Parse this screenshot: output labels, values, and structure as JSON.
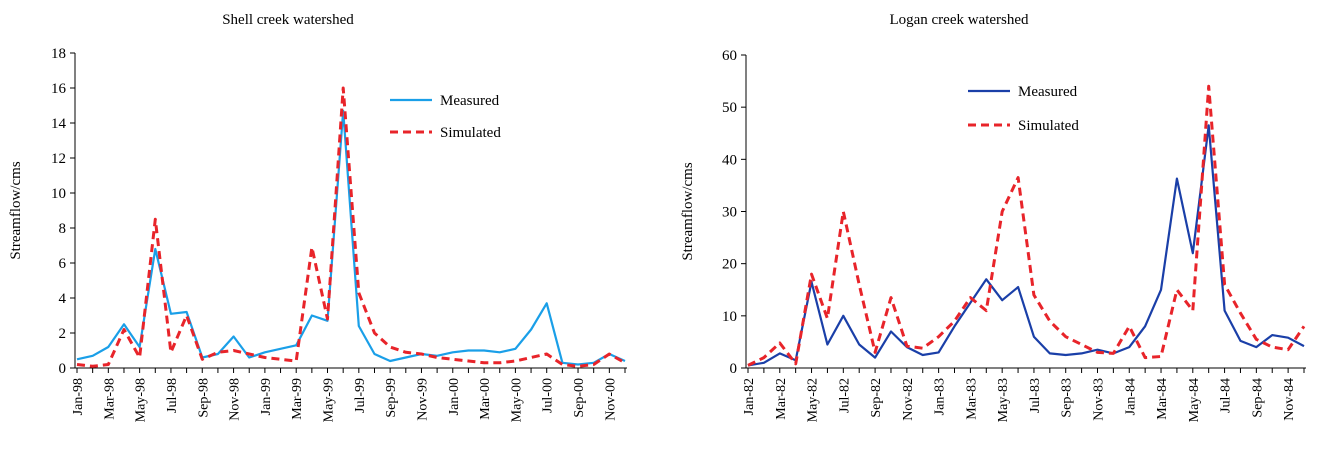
{
  "chart_data": [
    {
      "type": "line",
      "title": "Shell creek watershed",
      "xlabel": "",
      "ylabel": "Streamflow/cms",
      "ylim": [
        0,
        18
      ],
      "yticks": [
        0,
        2,
        4,
        6,
        8,
        10,
        12,
        14,
        16,
        18
      ],
      "grid": false,
      "legend_position": "top-right",
      "x": [
        "Jan-98",
        "Feb-98",
        "Mar-98",
        "Apr-98",
        "May-98",
        "Jun-98",
        "Jul-98",
        "Aug-98",
        "Sep-98",
        "Oct-98",
        "Nov-98",
        "Dec-98",
        "Jan-99",
        "Feb-99",
        "Mar-99",
        "Apr-99",
        "May-99",
        "Jun-99",
        "Jul-99",
        "Aug-99",
        "Sep-99",
        "Oct-99",
        "Nov-99",
        "Dec-99",
        "Jan-00",
        "Feb-00",
        "Mar-00",
        "Apr-00",
        "May-00",
        "Jun-00",
        "Jul-00",
        "Aug-00",
        "Sep-00",
        "Oct-00",
        "Nov-00",
        "Dec-00"
      ],
      "x_tick_labels": [
        "Jan-98",
        "Mar-98",
        "May-98",
        "Jul-98",
        "Sep-98",
        "Nov-98",
        "Jan-99",
        "Mar-99",
        "May-99",
        "Jul-99",
        "Sep-99",
        "Nov-99",
        "Jan-00",
        "Mar-00",
        "May-00",
        "Jul-00",
        "Sep-00",
        "Nov-00"
      ],
      "series": [
        {
          "name": "Measured",
          "color": "#1a9fe8",
          "dash": "solid",
          "values": [
            0.5,
            0.7,
            1.2,
            2.5,
            1.2,
            6.8,
            3.1,
            3.2,
            0.6,
            0.8,
            1.8,
            0.6,
            0.9,
            1.1,
            1.3,
            3.0,
            2.7,
            14.7,
            2.4,
            0.8,
            0.4,
            0.6,
            0.8,
            0.7,
            0.9,
            1.0,
            1.0,
            0.9,
            1.1,
            2.2,
            3.7,
            0.3,
            0.2,
            0.3,
            0.8,
            0.4
          ]
        },
        {
          "name": "Simulated",
          "color": "#e8242a",
          "dash": "dashed",
          "values": [
            0.2,
            0.1,
            0.2,
            2.2,
            0.6,
            8.5,
            0.9,
            3.0,
            0.5,
            0.9,
            1.0,
            0.8,
            0.6,
            0.5,
            0.4,
            6.9,
            2.8,
            16.0,
            4.3,
            2.0,
            1.2,
            0.9,
            0.8,
            0.6,
            0.5,
            0.4,
            0.3,
            0.3,
            0.4,
            0.6,
            0.8,
            0.2,
            0.1,
            0.2,
            0.8,
            0.3
          ]
        }
      ]
    },
    {
      "type": "line",
      "title": "Logan creek watershed",
      "xlabel": "",
      "ylabel": "Streamflow/cms",
      "ylim": [
        0,
        60
      ],
      "yticks": [
        0,
        10,
        20,
        30,
        40,
        50,
        60
      ],
      "grid": false,
      "legend_position": "top-center",
      "x": [
        "Jan-82",
        "Feb-82",
        "Mar-82",
        "Apr-82",
        "May-82",
        "Jun-82",
        "Jul-82",
        "Aug-82",
        "Sep-82",
        "Oct-82",
        "Nov-82",
        "Dec-82",
        "Jan-83",
        "Feb-83",
        "Mar-83",
        "Apr-83",
        "May-83",
        "Jun-83",
        "Jul-83",
        "Aug-83",
        "Sep-83",
        "Oct-83",
        "Nov-83",
        "Dec-83",
        "Jan-84",
        "Feb-84",
        "Mar-84",
        "Apr-84",
        "May-84",
        "Jun-84",
        "Jul-84",
        "Aug-84",
        "Sep-84",
        "Oct-84",
        "Nov-84",
        "Dec-84"
      ],
      "x_tick_labels": [
        "Jan-82",
        "Mar-82",
        "May-82",
        "Jul-82",
        "Sep-82",
        "Nov-82",
        "Jan-83",
        "Mar-83",
        "May-83",
        "Jul-83",
        "Sep-83",
        "Nov-83",
        "Jan-84",
        "Mar-84",
        "May-84",
        "Jul-84",
        "Sep-84",
        "Nov-84"
      ],
      "series": [
        {
          "name": "Measured",
          "color": "#1a3fa8",
          "dash": "solid",
          "values": [
            0.5,
            1.0,
            2.8,
            1.5,
            16.5,
            4.5,
            10.0,
            4.5,
            2.0,
            7.0,
            4.0,
            2.5,
            3.0,
            8.0,
            12.5,
            17.0,
            13.0,
            15.5,
            6.0,
            2.8,
            2.5,
            2.8,
            3.5,
            2.8,
            4.0,
            8.0,
            15.0,
            36.3,
            22.0,
            46.5,
            11.0,
            5.2,
            4.0,
            6.3,
            5.8,
            4.2
          ]
        },
        {
          "name": "Simulated",
          "color": "#e8242a",
          "dash": "dashed",
          "values": [
            0.5,
            2.0,
            4.8,
            0.8,
            18.0,
            9.5,
            30.0,
            16.0,
            3.0,
            13.5,
            4.2,
            3.8,
            6.0,
            9.0,
            13.5,
            11.0,
            30.0,
            36.5,
            14.0,
            9.0,
            6.0,
            4.5,
            3.0,
            2.8,
            8.0,
            2.0,
            2.2,
            15.0,
            11.0,
            54.0,
            16.0,
            10.5,
            5.5,
            4.0,
            3.5,
            8.0
          ]
        }
      ]
    }
  ]
}
